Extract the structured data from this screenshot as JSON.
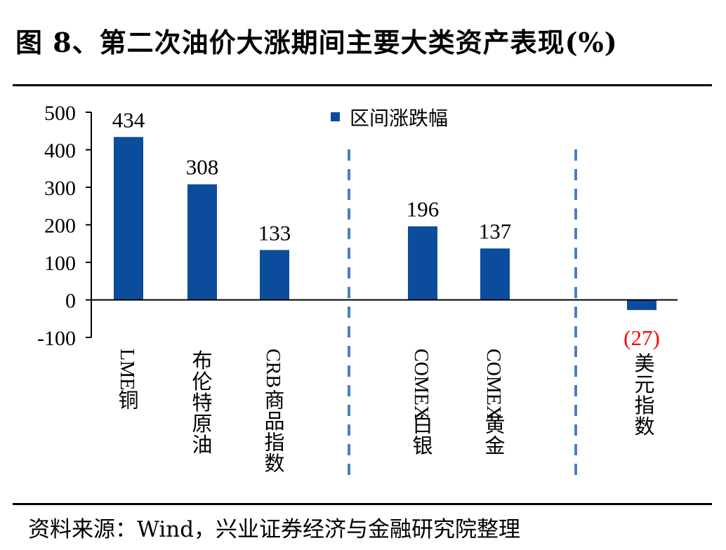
{
  "title": "图 8、第二次油价大涨期间主要大类资产表现(%)",
  "source": "资料来源：Wind，兴业证券经济与金融研究院整理",
  "chart_data": {
    "type": "bar",
    "title": "图 8、第二次油价大涨期间主要大类资产表现(%)",
    "xlabel": "",
    "ylabel": "",
    "ylim": [
      -100,
      500
    ],
    "yticks": [
      500,
      400,
      300,
      200,
      100,
      0,
      -100
    ],
    "ytick_labels": [
      "500",
      "400",
      "300",
      "200",
      "100",
      "0",
      "-100"
    ],
    "grid": false,
    "legend_position": "top-center",
    "categories": [
      "LME铜",
      "布伦特原油",
      "CRB商品指数",
      "COMEX白银",
      "COMEX黄金",
      "美元指数"
    ],
    "series": [
      {
        "name": "区间涨跌幅",
        "color": "#0b4d9c",
        "values": [
          434,
          308,
          133,
          196,
          137,
          -27
        ],
        "value_labels": [
          "434",
          "308",
          "133",
          "196",
          "137",
          "(27)"
        ],
        "value_label_colors": [
          "#000000",
          "#000000",
          "#000000",
          "#000000",
          "#000000",
          "#ff0000"
        ]
      }
    ],
    "group_separators": "dashed-vertical-lines",
    "separator_color": "#4a7fc1"
  }
}
